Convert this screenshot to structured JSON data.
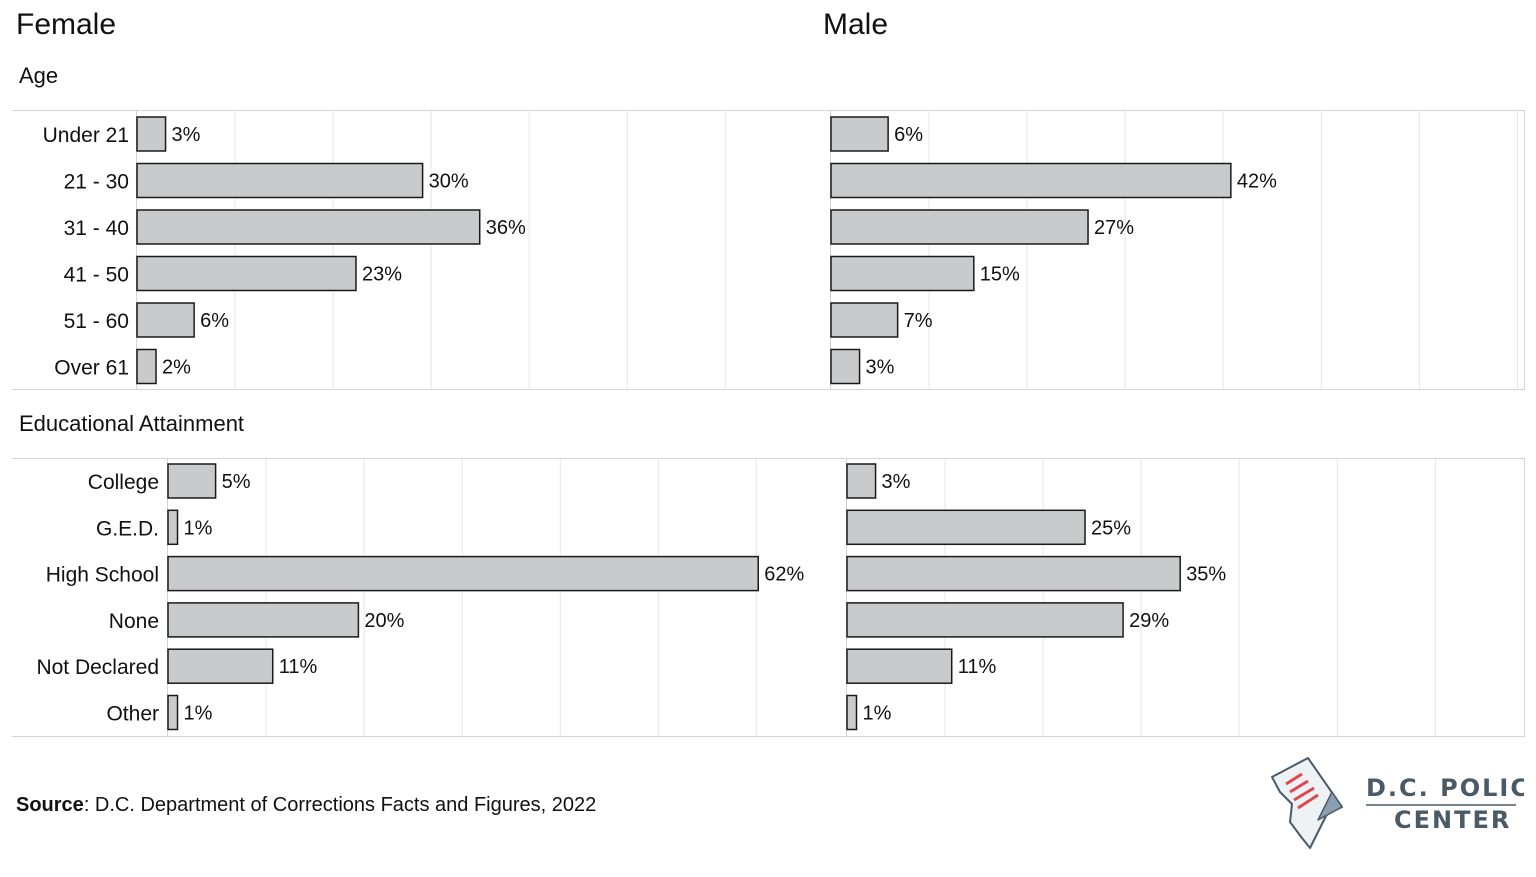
{
  "columns": {
    "female": "Female",
    "male": "Male"
  },
  "sections": {
    "age": "Age",
    "education": "Educational Attainment"
  },
  "source": {
    "label": "Source",
    "text": ": D.C. Department of Corrections Facts and Figures, 2022"
  },
  "logo": {
    "line1": "D.C. POLICY",
    "line2": "CENTER",
    "icon": "dc-map-document-icon"
  },
  "colors": {
    "bar": "#c8cacb",
    "bar_stroke": "#1a1a1a",
    "grid": "#e6e6e6",
    "frame": "#d4d4d4",
    "logo_red": "#e0474c",
    "logo_slate": "#4a5a66"
  },
  "chart_data": [
    {
      "type": "bar",
      "orientation": "horizontal",
      "section": "Age",
      "panel": "Female",
      "categories": [
        "Under 21",
        "21 - 30",
        "31 - 40",
        "41 - 50",
        "51 - 60",
        "Over 61"
      ],
      "values": [
        3,
        30,
        36,
        23,
        6,
        2
      ],
      "labels": [
        "3%",
        "30%",
        "36%",
        "23%",
        "6%",
        "2%"
      ],
      "xlim": [
        0,
        70
      ],
      "grid": true
    },
    {
      "type": "bar",
      "orientation": "horizontal",
      "section": "Age",
      "panel": "Male",
      "categories": [
        "Under 21",
        "21 - 30",
        "31 - 40",
        "41 - 50",
        "51 - 60",
        "Over 61"
      ],
      "values": [
        6,
        42,
        27,
        15,
        7,
        3
      ],
      "labels": [
        "6%",
        "42%",
        "27%",
        "15%",
        "7%",
        "3%"
      ],
      "xlim": [
        0,
        70
      ],
      "grid": true
    },
    {
      "type": "bar",
      "orientation": "horizontal",
      "section": "Educational Attainment",
      "panel": "Female",
      "categories": [
        "College",
        "G.E.D.",
        "High School",
        "None",
        "Not Declared",
        "Other"
      ],
      "values": [
        5,
        1,
        62,
        20,
        11,
        1
      ],
      "labels": [
        "5%",
        "1%",
        "62%",
        "20%",
        "11%",
        "1%"
      ],
      "xlim": [
        0,
        70
      ],
      "grid": true
    },
    {
      "type": "bar",
      "orientation": "horizontal",
      "section": "Educational Attainment",
      "panel": "Male",
      "categories": [
        "College",
        "G.E.D.",
        "High School",
        "None",
        "Not Declared",
        "Other"
      ],
      "values": [
        3,
        25,
        35,
        29,
        11,
        1
      ],
      "labels": [
        "3%",
        "25%",
        "35%",
        "29%",
        "11%",
        "1%"
      ],
      "xlim": [
        0,
        70
      ],
      "grid": true
    }
  ]
}
